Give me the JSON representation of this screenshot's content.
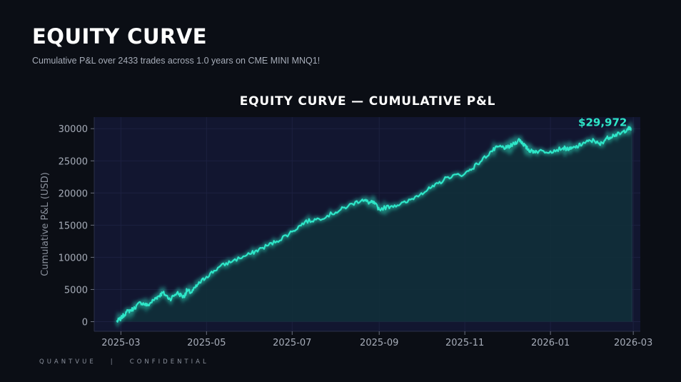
{
  "header": {
    "title": "EQUITY CURVE",
    "subtitle": "Cumulative P&L over 2433 trades across 1.0 years on CME MINI MNQ1!"
  },
  "footer": {
    "brand": "QUANTVUE",
    "separator": "|",
    "label": "CONFIDENTIAL"
  },
  "colors": {
    "background": "#0b0e15",
    "plot_background": "#121630",
    "line": "#2ee6c8",
    "fill": "#10303a"
  },
  "chart_data": {
    "type": "line",
    "title": "EQUITY CURVE — CUMULATIVE P&L",
    "xlabel": "",
    "ylabel": "Cumulative P&L (USD)",
    "ylim": [
      -1500,
      31800
    ],
    "xlim": [
      "2025-02-10",
      "2026-03-06"
    ],
    "xticks": [
      "2025-03",
      "2025-05",
      "2025-07",
      "2025-09",
      "2025-11",
      "2026-01",
      "2026-03"
    ],
    "yticks": [
      0,
      5000,
      10000,
      15000,
      20000,
      25000,
      30000
    ],
    "grid": true,
    "fill_under": true,
    "end_label": "$29,972",
    "series": [
      {
        "x": [
          "2025-02-26",
          "2025-03-01",
          "2025-03-05",
          "2025-03-10",
          "2025-03-15",
          "2025-03-20",
          "2025-03-25",
          "2025-03-28",
          "2025-03-31",
          "2025-04-05",
          "2025-04-10",
          "2025-04-15",
          "2025-04-17",
          "2025-04-20",
          "2025-04-25",
          "2025-05-01",
          "2025-05-10",
          "2025-05-20",
          "2025-06-01",
          "2025-06-10",
          "2025-06-20",
          "2025-07-01",
          "2025-07-10",
          "2025-07-20",
          "2025-08-01",
          "2025-08-10",
          "2025-08-20",
          "2025-08-25",
          "2025-08-28",
          "2025-09-01",
          "2025-09-10",
          "2025-09-20",
          "2025-10-01",
          "2025-10-10",
          "2025-10-20",
          "2025-11-01",
          "2025-11-10",
          "2025-11-20",
          "2025-11-25",
          "2025-12-01",
          "2025-12-05",
          "2025-12-10",
          "2025-12-12",
          "2025-12-15",
          "2025-12-18",
          "2025-12-22",
          "2026-01-01",
          "2026-01-10",
          "2026-01-15",
          "2026-01-20",
          "2026-01-25",
          "2026-02-01",
          "2026-02-05",
          "2026-02-10",
          "2026-02-15",
          "2026-02-20",
          "2026-02-25",
          "2026-02-28"
        ],
        "y": [
          0,
          500,
          1500,
          2000,
          3000,
          2500,
          3500,
          4000,
          4500,
          3500,
          4500,
          3800,
          4900,
          4500,
          5800,
          7000,
          8500,
          9500,
          10500,
          11500,
          12500,
          14000,
          15500,
          16000,
          17000,
          18000,
          19000,
          18500,
          18500,
          17500,
          18000,
          18500,
          20000,
          21000,
          22500,
          23000,
          24500,
          26500,
          27200,
          27000,
          27500,
          28300,
          27800,
          27000,
          26500,
          26500,
          26500,
          27000,
          26800,
          27200,
          27800,
          28200,
          27500,
          28500,
          29000,
          29200,
          30000,
          29972
        ]
      }
    ]
  }
}
